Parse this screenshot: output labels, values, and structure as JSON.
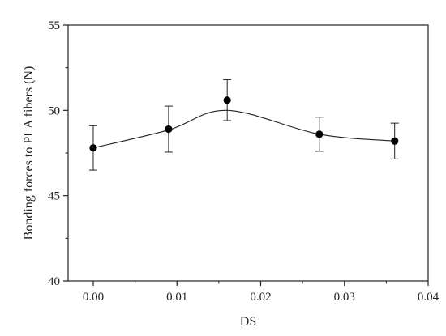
{
  "chart_data": {
    "type": "scatter",
    "title": "",
    "xlabel": "DS",
    "ylabel": "Bonding forces to PLA fibers (N)",
    "xlim": [
      -0.003,
      0.04
    ],
    "ylim": [
      40,
      55
    ],
    "xticks": [
      0.0,
      0.01,
      0.02,
      0.03,
      0.04
    ],
    "xtick_labels": [
      "0.00",
      "0.01",
      "0.02",
      "0.03",
      "0.04"
    ],
    "yticks": [
      40,
      45,
      50,
      55
    ],
    "ytick_labels": [
      "40",
      "45",
      "50",
      "55"
    ],
    "grid": false,
    "series": [
      {
        "x": [
          0.0,
          0.009,
          0.016,
          0.027,
          0.036
        ],
        "y": [
          47.8,
          48.9,
          50.6,
          48.6,
          48.2
        ],
        "error": [
          1.3,
          1.35,
          1.2,
          1.0,
          1.05
        ],
        "fit_curve": true
      }
    ]
  }
}
